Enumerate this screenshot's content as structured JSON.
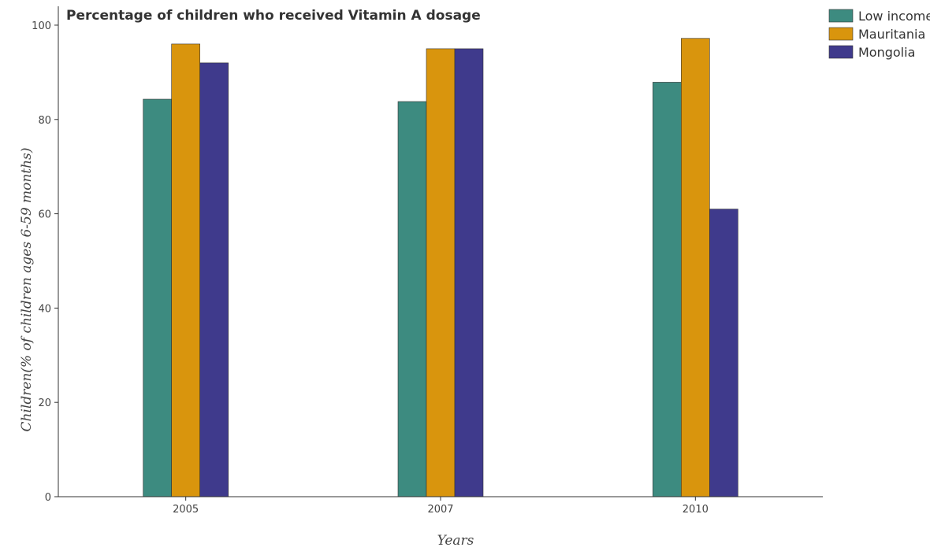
{
  "chart_data": {
    "type": "bar",
    "title": "Percentage of children who received Vitamin A dosage",
    "xlabel": "Years",
    "ylabel": "Children(% of children ages 6-59 months)",
    "categories": [
      "2005",
      "2007",
      "2010"
    ],
    "series": [
      {
        "name": "Low income",
        "color": "#3d8b80",
        "values": [
          84.3,
          83.8,
          87.9
        ]
      },
      {
        "name": "Mauritania",
        "color": "#d9950d",
        "values": [
          96.0,
          95.0,
          97.2
        ]
      },
      {
        "name": "Mongolia",
        "color": "#3f3a8c",
        "values": [
          92.0,
          95.0,
          61.0
        ]
      }
    ],
    "ylim": [
      0,
      104
    ],
    "yticks": [
      0,
      20,
      40,
      60,
      80,
      100
    ],
    "grid": false,
    "legend": "top-right"
  }
}
